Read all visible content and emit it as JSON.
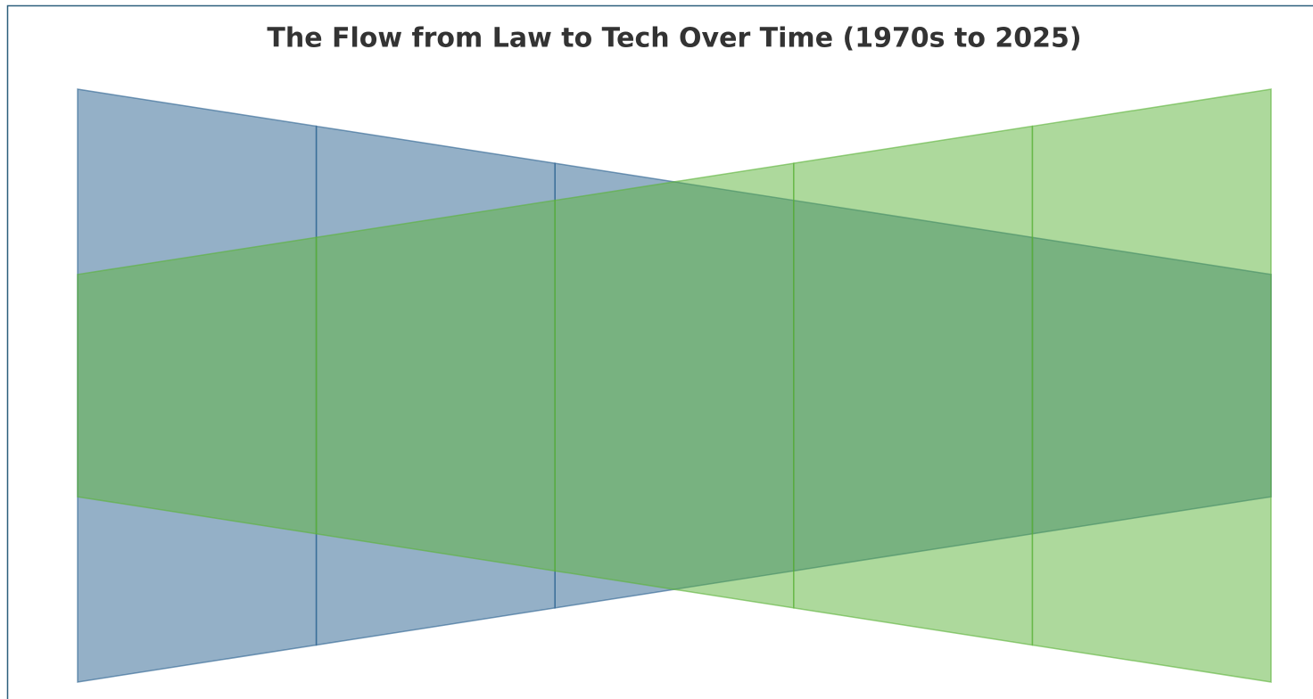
{
  "chart_data": {
    "type": "funnel",
    "title": "The Flow from Law to Tech Over Time (1970s to 2025)",
    "categories": [
      null,
      null,
      null,
      null,
      null,
      null
    ],
    "series": [
      {
        "color": "#2a6190",
        "values": [
          100,
          87.5,
          75,
          62.5,
          50,
          37.5
        ]
      },
      {
        "color": "#5cb339",
        "values": [
          37.5,
          50,
          62.5,
          75,
          87.5,
          100
        ]
      }
    ],
    "ylim": [
      0,
      100
    ]
  }
}
